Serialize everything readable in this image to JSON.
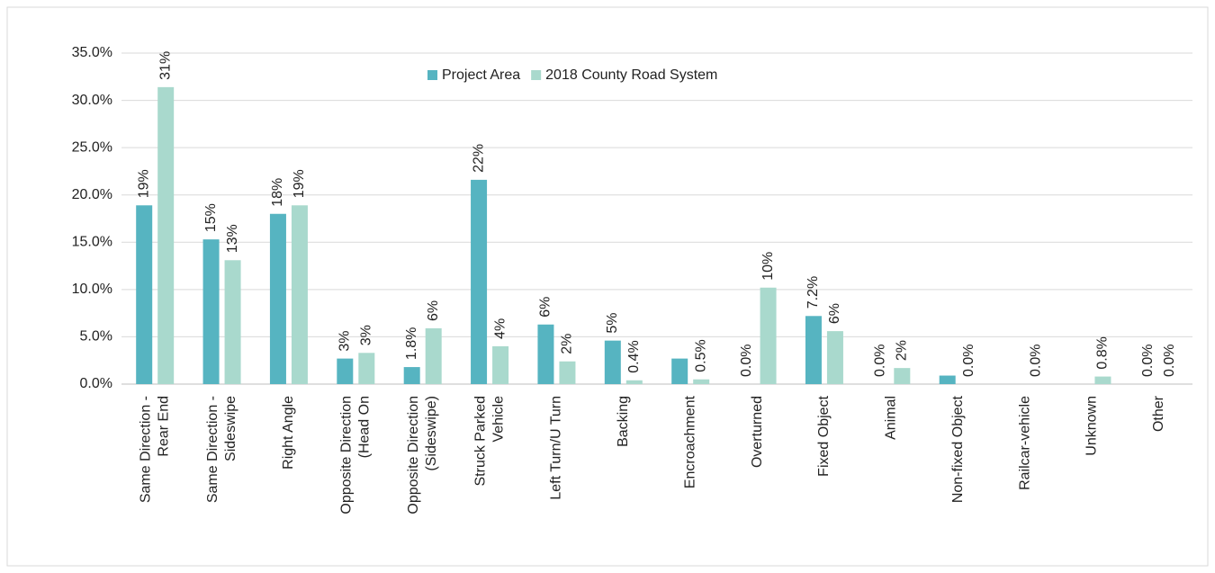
{
  "chart_data": {
    "type": "bar",
    "categories": [
      [
        "Same Direction -",
        "Rear End"
      ],
      [
        "Same Direction -",
        "Sideswipe"
      ],
      [
        "Right Angle"
      ],
      [
        "Opposite Direction",
        "(Head On"
      ],
      [
        "Opposite Direction",
        "(Sideswipe)"
      ],
      [
        "Struck Parked",
        "Vehicle"
      ],
      [
        "Left Turn/U Turn"
      ],
      [
        "Backing"
      ],
      [
        "Encroachment"
      ],
      [
        "Overturned"
      ],
      [
        "Fixed Object"
      ],
      [
        "Animal"
      ],
      [
        "Non-fixed Object"
      ],
      [
        "Railcar-vehicle"
      ],
      [
        "Unknown"
      ],
      [
        "Other"
      ]
    ],
    "series": [
      {
        "name": "Project Area",
        "color": "#56b4c1",
        "values": [
          18.9,
          15.3,
          18.0,
          2.7,
          1.8,
          21.6,
          6.3,
          4.6,
          2.7,
          0.0,
          7.2,
          0.0,
          0.9,
          0.0,
          0.0,
          0.0
        ],
        "value_labels": [
          "19%",
          "15%",
          "18%",
          "3%",
          "1.8%",
          "22%",
          "6%",
          "5%",
          null,
          "0.0%",
          "7.2%",
          "0.0%",
          null,
          null,
          null,
          "0.0%"
        ]
      },
      {
        "name": "2018 County Road System",
        "color": "#a9d9cd",
        "values": [
          31.4,
          13.1,
          18.9,
          3.3,
          5.9,
          4.0,
          2.4,
          0.4,
          0.5,
          10.2,
          5.6,
          1.7,
          0.0,
          0.0,
          0.8,
          0.0
        ],
        "value_labels": [
          "31%",
          "13%",
          "19%",
          "3%",
          "6%",
          "4%",
          "2%",
          "0.4%",
          "0.5%",
          "10%",
          "6%",
          "2%",
          "0.0%",
          "0.0%",
          "0.8%",
          "0.0%"
        ]
      }
    ],
    "ylim": [
      0,
      35
    ],
    "yticks": [
      {
        "value": 0,
        "label": "0.0%"
      },
      {
        "value": 5,
        "label": "5.0%"
      },
      {
        "value": 10,
        "label": "10.0%"
      },
      {
        "value": 15,
        "label": "15.0%"
      },
      {
        "value": 20,
        "label": "20.0%"
      },
      {
        "value": 25,
        "label": "25.0%"
      },
      {
        "value": 30,
        "label": "30.0%"
      },
      {
        "value": 35,
        "label": "35.0%"
      }
    ],
    "grid": true,
    "legend": "top"
  }
}
